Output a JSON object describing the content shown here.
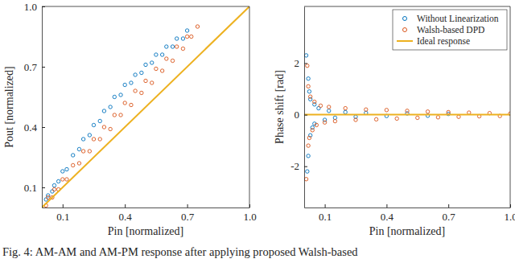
{
  "caption": "Fig. 4: AM-AM and AM-PM response after applying proposed Walsh-based",
  "chart_data": [
    {
      "type": "scatter",
      "x_label": "Pin [normalized]",
      "y_label": "Pout [normalized]",
      "xlim": [
        0,
        1.0
      ],
      "ylim": [
        0,
        1.0
      ],
      "xticks": [
        0.1,
        0.4,
        0.7,
        {
          "value": 1.0,
          "label": "1.0"
        }
      ],
      "yticks": [
        0.1,
        0.4,
        0.7,
        {
          "value": 1.0,
          "label": "1.0"
        }
      ],
      "grid": false,
      "series": [
        {
          "type": "scatter",
          "marker": "circle",
          "color": "#0072bd",
          "x": [
            0.02,
            0.03,
            0.05,
            0.06,
            0.08,
            0.1,
            0.12,
            0.15,
            0.18,
            0.2,
            0.23,
            0.25,
            0.28,
            0.3,
            0.33,
            0.35,
            0.38,
            0.4,
            0.43,
            0.45,
            0.48,
            0.5,
            0.53,
            0.55,
            0.58,
            0.6,
            0.63,
            0.65,
            0.68,
            0.7
          ],
          "values": [
            0.04,
            0.06,
            0.08,
            0.11,
            0.13,
            0.18,
            0.19,
            0.26,
            0.29,
            0.34,
            0.36,
            0.41,
            0.43,
            0.48,
            0.5,
            0.55,
            0.56,
            0.61,
            0.62,
            0.66,
            0.67,
            0.71,
            0.72,
            0.76,
            0.76,
            0.8,
            0.8,
            0.84,
            0.84,
            0.88
          ]
        },
        {
          "type": "scatter",
          "marker": "circle",
          "color": "#d95319",
          "x": [
            0.02,
            0.03,
            0.05,
            0.06,
            0.08,
            0.1,
            0.12,
            0.15,
            0.18,
            0.2,
            0.23,
            0.25,
            0.28,
            0.3,
            0.33,
            0.35,
            0.38,
            0.4,
            0.43,
            0.45,
            0.48,
            0.5,
            0.53,
            0.55,
            0.58,
            0.6,
            0.63,
            0.65,
            0.68,
            0.7,
            0.72,
            0.75
          ],
          "values": [
            0.01,
            0.05,
            0.05,
            0.09,
            0.09,
            0.14,
            0.14,
            0.21,
            0.22,
            0.28,
            0.28,
            0.34,
            0.34,
            0.4,
            0.39,
            0.46,
            0.46,
            0.52,
            0.51,
            0.58,
            0.57,
            0.63,
            0.62,
            0.69,
            0.68,
            0.74,
            0.73,
            0.8,
            0.79,
            0.85,
            0.85,
            0.9
          ]
        },
        {
          "type": "line",
          "line_style": "solid",
          "color": "#edb120",
          "x": [
            0,
            1.0
          ],
          "values": [
            0,
            1.0
          ]
        }
      ]
    },
    {
      "type": "scatter",
      "x_label": "Pin [normalized]",
      "y_label": "Phase shift [rad]",
      "xlim": [
        0,
        1.0
      ],
      "ylim": [
        -3.6,
        4.2
      ],
      "xticks": [
        0.1,
        0.4,
        0.7,
        {
          "value": 1.0,
          "label": "1.0"
        }
      ],
      "yticks": [
        -2,
        0,
        2
      ],
      "grid": false,
      "legend": "northeast",
      "series": [
        {
          "name": "Without Linearization",
          "type": "scatter",
          "marker": "circle",
          "color": "#0072bd",
          "x": [
            0.01,
            0.015,
            0.02,
            0.02,
            0.025,
            0.03,
            0.03,
            0.04,
            0.05,
            0.05,
            0.07,
            0.1,
            0.12,
            0.15,
            0.2,
            0.25,
            0.3,
            0.4,
            0.5,
            0.6,
            0.7
          ],
          "values": [
            2.3,
            -2.2,
            1.4,
            -1.6,
            0.9,
            -0.8,
            0.6,
            -0.5,
            0.4,
            -0.35,
            0.25,
            -0.2,
            0.15,
            -0.12,
            0.1,
            -0.08,
            0.07,
            -0.05,
            0.05,
            -0.04,
            0.03
          ]
        },
        {
          "name": "Walsh-based DPD",
          "type": "scatter",
          "marker": "circle",
          "color": "#d95319",
          "x": [
            0.01,
            0.015,
            0.02,
            0.02,
            0.025,
            0.03,
            0.04,
            0.05,
            0.06,
            0.08,
            0.1,
            0.12,
            0.15,
            0.2,
            0.25,
            0.3,
            0.35,
            0.4,
            0.45,
            0.5,
            0.55,
            0.6,
            0.65,
            0.7,
            0.75,
            0.8,
            0.85,
            0.9,
            0.95,
            1.0
          ],
          "values": [
            -2.5,
            1.9,
            -1.2,
            1.1,
            -0.9,
            0.7,
            -0.6,
            0.5,
            -0.4,
            0.35,
            -0.3,
            0.3,
            -0.25,
            0.25,
            -0.2,
            0.2,
            -0.18,
            0.18,
            -0.15,
            0.15,
            -0.12,
            0.12,
            -0.1,
            0.1,
            -0.08,
            0.08,
            -0.06,
            0.06,
            -0.05,
            0.04
          ]
        },
        {
          "name": "Ideal response",
          "type": "line",
          "line_style": "solid",
          "color": "#edb120",
          "x": [
            0,
            1.0
          ],
          "values": [
            0,
            0
          ]
        }
      ]
    }
  ]
}
